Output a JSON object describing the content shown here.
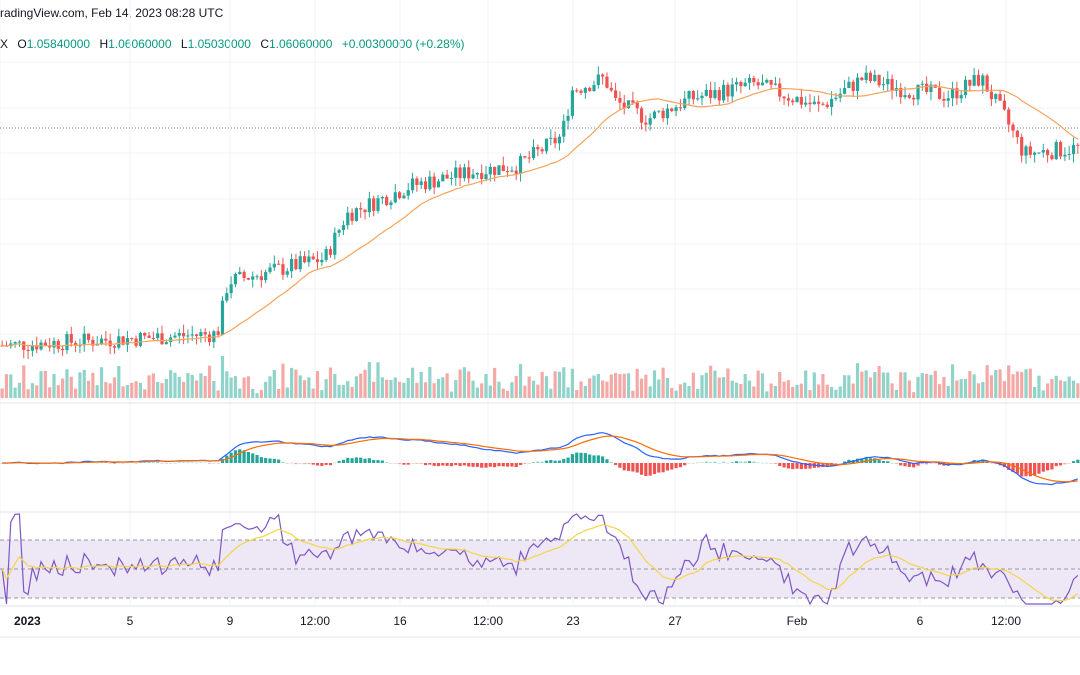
{
  "header": {
    "source": "radingView.com, Feb 14, 2023 08:28 UTC"
  },
  "ohlc": {
    "symbol_tail": "X",
    "o_label": "O",
    "o": "1.05840000",
    "h_label": "H",
    "h": "1.06060000",
    "l_label": "L",
    "l": "1.05030000",
    "c_label": "C",
    "c": "1.06060000",
    "change": "+0.00300000 (+0.28%)"
  },
  "colors": {
    "up": "#26a69a",
    "down": "#ef5350",
    "vol_up": "#8fd3c9",
    "vol_down": "#f5a9a7",
    "ma": "#f7a35c",
    "macd": "#2962ff",
    "signal": "#ff6d00",
    "rsi": "#7e57c2",
    "rsi_ma": "#f5d547",
    "rsi_band": "#ede7f6",
    "grid": "#f0f3fa"
  },
  "chart_data": {
    "type": "candlestick",
    "panes": [
      "price",
      "volume",
      "macd",
      "rsi"
    ],
    "x_tick_labels": [
      "2023",
      "5",
      "9",
      "12:00",
      "16",
      "12:00",
      "23",
      "27",
      "Feb",
      "6",
      "12:00"
    ],
    "price_close_trend": [
      [
        0,
        1.0
      ],
      [
        0.1,
        1.002
      ],
      [
        0.2,
        1.004
      ],
      [
        0.21,
        1.022
      ],
      [
        0.3,
        1.03
      ],
      [
        0.32,
        1.045
      ],
      [
        0.38,
        1.055
      ],
      [
        0.44,
        1.06
      ],
      [
        0.48,
        1.062
      ],
      [
        0.52,
        1.072
      ],
      [
        0.53,
        1.088
      ],
      [
        0.56,
        1.092
      ],
      [
        0.57,
        1.084
      ],
      [
        0.6,
        1.078
      ],
      [
        0.64,
        1.085
      ],
      [
        0.7,
        1.09
      ],
      [
        0.76,
        1.082
      ],
      [
        0.8,
        1.092
      ],
      [
        0.84,
        1.088
      ],
      [
        0.88,
        1.086
      ],
      [
        0.91,
        1.092
      ],
      [
        0.93,
        1.08
      ],
      [
        0.95,
        1.066
      ],
      [
        1.0,
        1.068
      ]
    ],
    "rsi_levels": [
      70,
      50,
      30
    ],
    "last_ohlc": {
      "open": 1.0584,
      "high": 1.0606,
      "low": 1.0503,
      "close": 1.0606
    }
  }
}
